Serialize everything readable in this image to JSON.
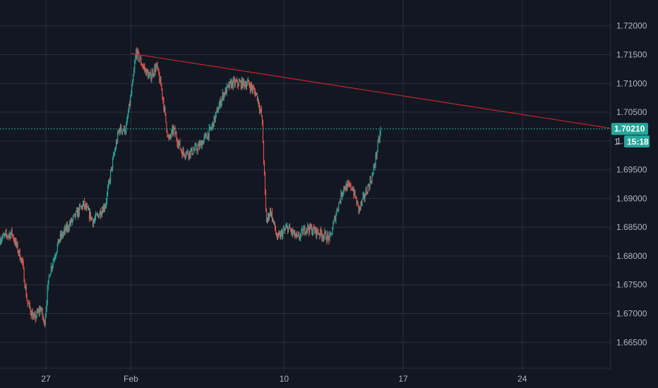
{
  "colors": {
    "background": "#131722",
    "grid": "#2a2e39",
    "up": "#26a69a",
    "down": "#ef5350",
    "trendline": "#c0262d",
    "price_line": "#26a69a",
    "axis_text": "#b2b5be",
    "tag_text": "#ffffff"
  },
  "chart_data": {
    "type": "candlestick",
    "grid": true,
    "y_axis_side": "right",
    "ylim": [
      1.6605,
      1.7245
    ],
    "y_ticks": [
      "1.72000",
      "1.71500",
      "1.71000",
      "1.70500",
      "1.70000",
      "1.69500",
      "1.69000",
      "1.68500",
      "1.68000",
      "1.67500",
      "1.67000",
      "1.66500"
    ],
    "x_ticks": [
      {
        "label": "27",
        "day": 27
      },
      {
        "label": "Feb",
        "day": 32
      },
      {
        "label": "10",
        "day": 41
      },
      {
        "label": "17",
        "day": 48
      },
      {
        "label": "24",
        "day": 55
      }
    ],
    "xlim": [
      24.3,
      60.2
    ],
    "trendline": {
      "start": {
        "day": 32,
        "price": 1.7152
      },
      "end": {
        "day": 60.2,
        "price": 1.7022
      }
    },
    "last_price": {
      "value": 1.7021,
      "label": "1.70210",
      "countdown": "15:18",
      "partial_label": "1."
    },
    "close_path": [
      [
        24.3,
        1.683
      ],
      [
        25.0,
        1.684
      ],
      [
        25.6,
        1.679
      ],
      [
        25.9,
        1.672
      ],
      [
        26.3,
        1.669
      ],
      [
        26.7,
        1.671
      ],
      [
        26.9,
        1.668
      ],
      [
        27.2,
        1.677
      ],
      [
        27.8,
        1.683
      ],
      [
        28.5,
        1.686
      ],
      [
        29.2,
        1.689
      ],
      [
        29.8,
        1.686
      ],
      [
        30.5,
        1.689
      ],
      [
        30.9,
        1.696
      ],
      [
        31.3,
        1.702
      ],
      [
        31.7,
        1.702
      ],
      [
        32.1,
        1.71
      ],
      [
        32.3,
        1.7155
      ],
      [
        32.7,
        1.713
      ],
      [
        33.1,
        1.711
      ],
      [
        33.5,
        1.713
      ],
      [
        33.8,
        1.709
      ],
      [
        34.2,
        1.7
      ],
      [
        34.5,
        1.702
      ],
      [
        35.0,
        1.698
      ],
      [
        35.5,
        1.698
      ],
      [
        36.0,
        1.699
      ],
      [
        36.7,
        1.702
      ],
      [
        37.4,
        1.708
      ],
      [
        37.9,
        1.71
      ],
      [
        38.4,
        1.71
      ],
      [
        38.9,
        1.71
      ],
      [
        39.4,
        1.708
      ],
      [
        39.7,
        1.704
      ],
      [
        39.95,
        1.686
      ],
      [
        40.2,
        1.688
      ],
      [
        40.6,
        1.683
      ],
      [
        41.2,
        1.685
      ],
      [
        41.8,
        1.683
      ],
      [
        42.3,
        1.685
      ],
      [
        43.1,
        1.684
      ],
      [
        43.7,
        1.683
      ],
      [
        44.1,
        1.688
      ],
      [
        44.5,
        1.692
      ],
      [
        45.0,
        1.692
      ],
      [
        45.4,
        1.688
      ],
      [
        45.8,
        1.691
      ],
      [
        46.2,
        1.694
      ],
      [
        46.5,
        1.699
      ],
      [
        46.7,
        1.7021
      ]
    ]
  }
}
